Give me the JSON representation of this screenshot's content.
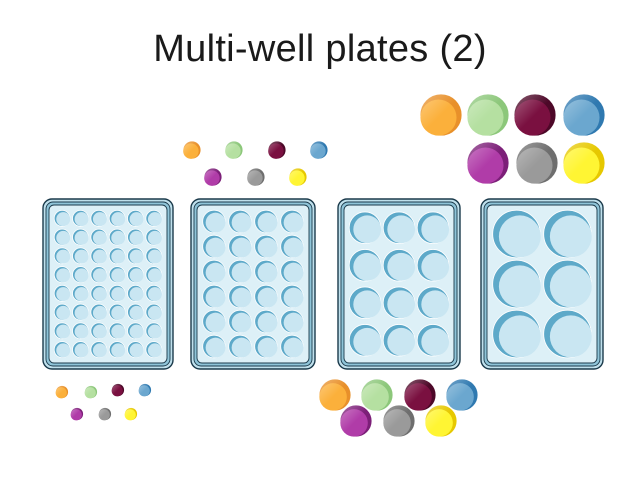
{
  "slide": {
    "title": "Multi-well plates (2)"
  },
  "palette": {
    "well_fill": "#c9e6f2",
    "well_shade": "#5da9c9",
    "plate_outer": "#1b3a4b",
    "plate_fill": "#ddf0f7",
    "plate_rim": "#8fc4d8"
  },
  "plates": [
    {
      "name": "48-well",
      "rows": 8,
      "cols": 6
    },
    {
      "name": "24-well",
      "rows": 6,
      "cols": 4
    },
    {
      "name": "12-well",
      "rows": 4,
      "cols": 3
    },
    {
      "name": "6-well",
      "rows": 3,
      "cols": 2
    }
  ],
  "dot_colors": [
    {
      "name": "orange",
      "fill": "#fbb03b",
      "shade": "#e8902a"
    },
    {
      "name": "light-green",
      "fill": "#b5e0a1",
      "shade": "#8cc77a"
    },
    {
      "name": "maroon",
      "fill": "#7a1040",
      "shade": "#4d0828"
    },
    {
      "name": "blue",
      "fill": "#6ba7cf",
      "shade": "#2f79b0"
    },
    {
      "name": "magenta",
      "fill": "#b03ca8",
      "shade": "#7c1f78"
    },
    {
      "name": "gray",
      "fill": "#9a9a9a",
      "shade": "#6e6e6e"
    },
    {
      "name": "yellow",
      "fill": "#fff533",
      "shade": "#e6c800"
    }
  ]
}
